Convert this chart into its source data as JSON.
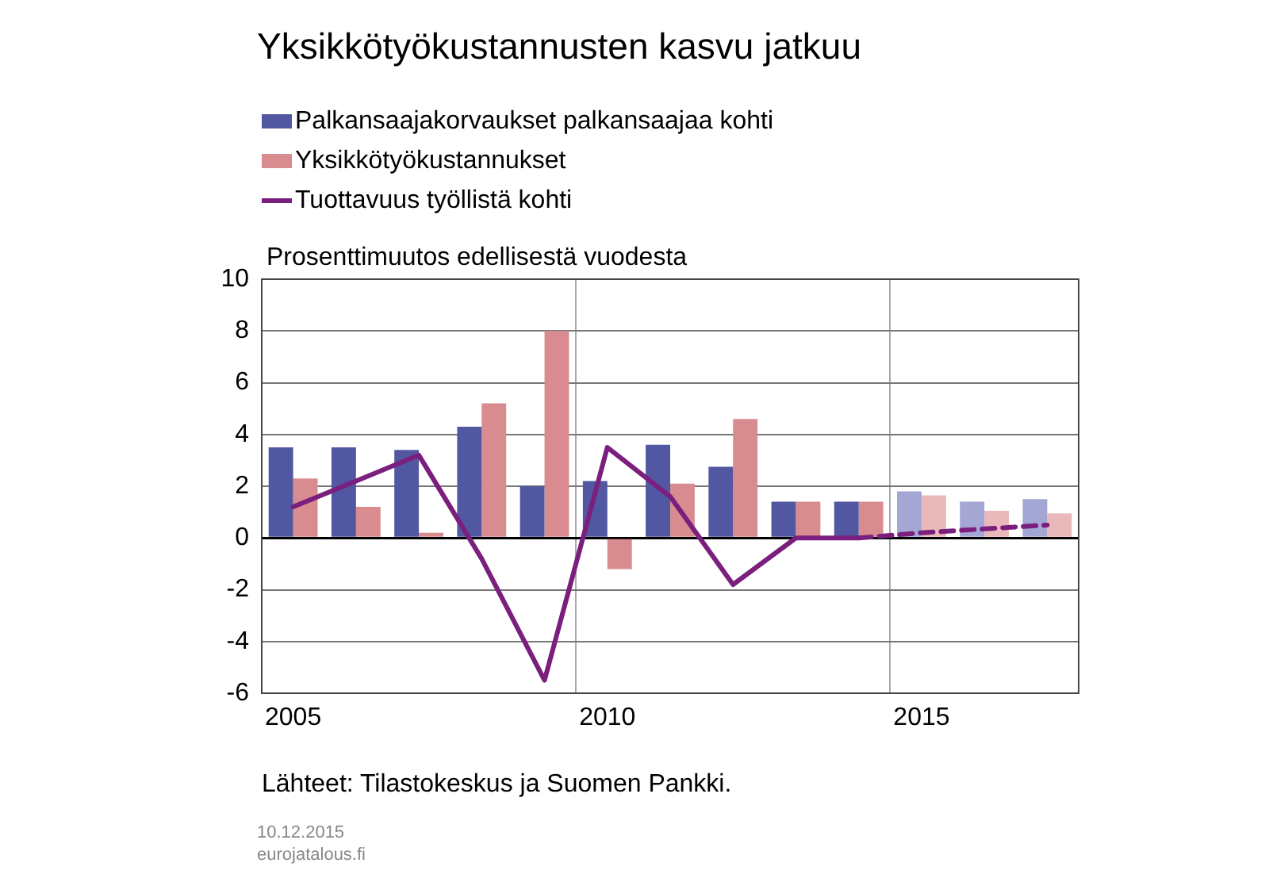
{
  "chart_data": {
    "type": "bar",
    "title": "Yksikkötyökustannusten kasvu jatkuu",
    "ylabel": "Prosenttimuutos edellisestä vuodesta",
    "categories": [
      "2005",
      null,
      null,
      null,
      null,
      "2010",
      null,
      null,
      null,
      null,
      "2015",
      null,
      null
    ],
    "series": [
      {
        "name": "Palkansaajakorvaukset palkansaajaa kohti",
        "color": "#5157a0",
        "colors": [
          "#5157a0",
          "#5157a0",
          "#5157a0",
          "#5157a0",
          "#5157a0",
          "#5157a0",
          "#5157a0",
          "#5157a0",
          "#5157a0",
          "#5157a0",
          "#a4a6d4",
          "#a4a6d4",
          "#a4a6d4"
        ],
        "values": [
          3.5,
          3.5,
          3.4,
          4.3,
          2.0,
          2.2,
          3.6,
          2.75,
          1.4,
          1.4,
          1.8,
          1.4,
          1.5
        ]
      },
      {
        "name": "Yksikkötyökustannukset",
        "color": "#d98c8f",
        "colors": [
          "#d98c8f",
          "#d98c8f",
          "#d98c8f",
          "#d98c8f",
          "#d98c8f",
          "#d98c8f",
          "#d98c8f",
          "#d98c8f",
          "#d98c8f",
          "#d98c8f",
          "#e9b8ba",
          "#e9b8ba",
          "#e9b8ba"
        ],
        "values": [
          2.3,
          1.2,
          0.2,
          5.2,
          8.0,
          -1.2,
          2.1,
          4.6,
          1.4,
          1.4,
          1.65,
          1.05,
          0.95
        ]
      },
      {
        "name": "Tuottavuus työllistä kohti",
        "type": "line",
        "color": "#7b1f7e",
        "line_style": "solid",
        "values": [
          1.2,
          2.2,
          3.2,
          -0.8,
          -5.5,
          3.5,
          1.6,
          -1.8,
          0.0,
          0.0,
          null,
          null,
          null
        ]
      },
      {
        "type": "line",
        "color": "#7b1f7e",
        "line_style": "dashed",
        "values": [
          null,
          null,
          null,
          null,
          null,
          null,
          null,
          null,
          null,
          0.0,
          0.2,
          0.35,
          0.5
        ]
      }
    ],
    "ylim": [
      -6,
      10
    ],
    "yticks": [
      -6,
      -4,
      -2,
      0,
      2,
      4,
      6,
      8,
      10
    ],
    "grid": true,
    "legend": "top left",
    "marker": "none",
    "annotations": [
      "Lähteet: Tilastokeskus ja Suomen Pankki.",
      "10.12.2015",
      "eurojatalous.fi"
    ]
  }
}
